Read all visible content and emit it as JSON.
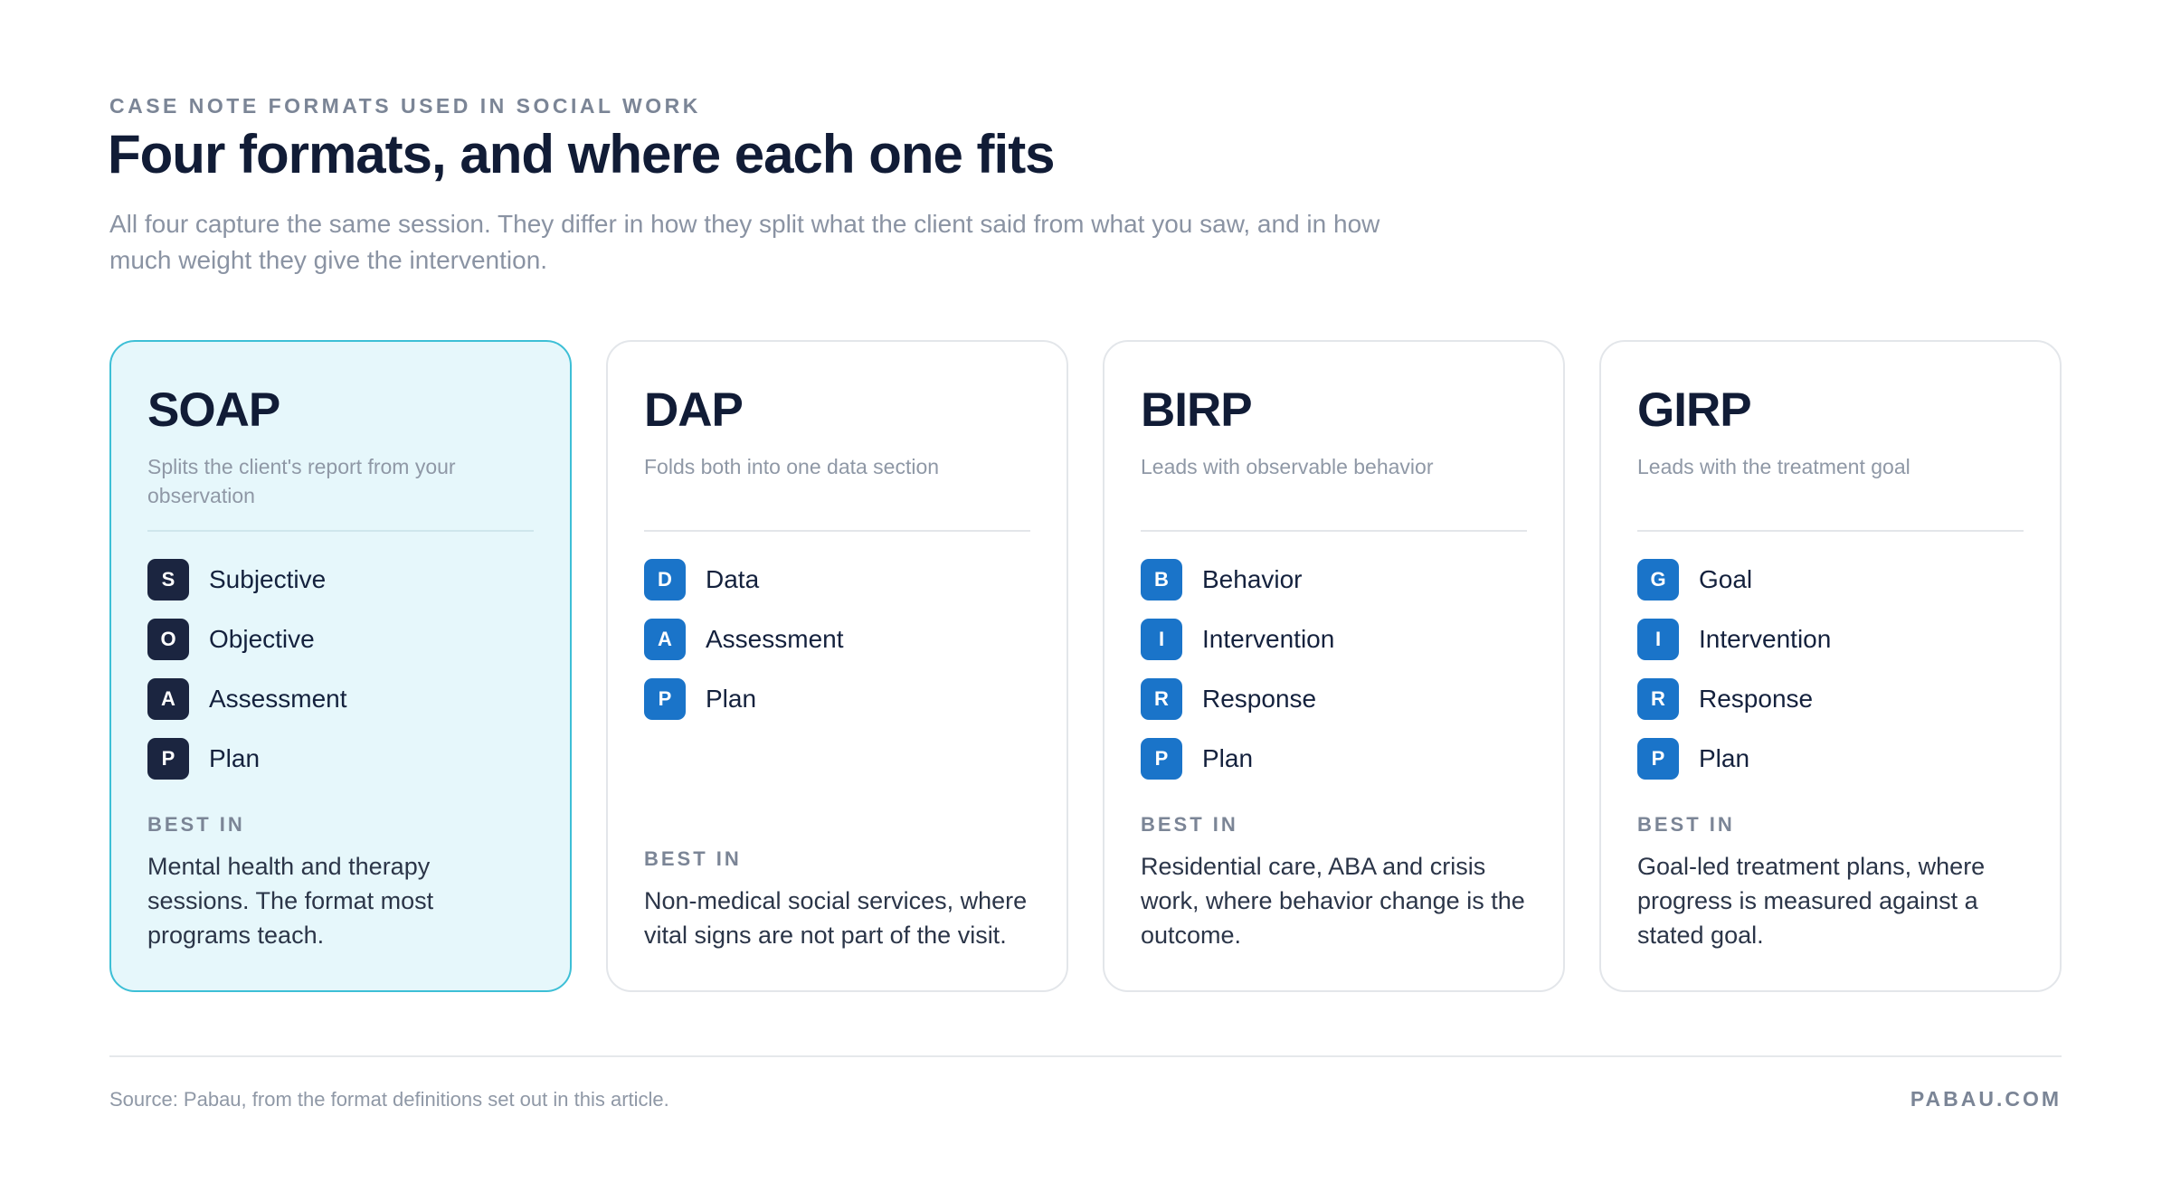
{
  "header": {
    "eyebrow": "CASE NOTE FORMATS USED IN SOCIAL WORK",
    "title": "Four formats, and where each one fits",
    "subtitle": "All four capture the same session. They differ in how they split what the client said from what you saw, and in how much weight they give the intervention."
  },
  "cards": [
    {
      "name": "SOAP",
      "highlighted": true,
      "description": "Splits the client's report from your observation",
      "items": [
        {
          "letter": "S",
          "label": "Subjective"
        },
        {
          "letter": "O",
          "label": "Objective"
        },
        {
          "letter": "A",
          "label": "Assessment"
        },
        {
          "letter": "P",
          "label": "Plan"
        }
      ],
      "best_in_label": "BEST IN",
      "best_in": "Mental health and therapy sessions. The format most programs teach."
    },
    {
      "name": "DAP",
      "highlighted": false,
      "description": "Folds both into one data section",
      "items": [
        {
          "letter": "D",
          "label": "Data"
        },
        {
          "letter": "A",
          "label": "Assessment"
        },
        {
          "letter": "P",
          "label": "Plan"
        }
      ],
      "best_in_label": "BEST IN",
      "best_in": "Non-medical social services, where vital signs are not part of the visit."
    },
    {
      "name": "BIRP",
      "highlighted": false,
      "description": "Leads with observable behavior",
      "items": [
        {
          "letter": "B",
          "label": "Behavior"
        },
        {
          "letter": "I",
          "label": "Intervention"
        },
        {
          "letter": "R",
          "label": "Response"
        },
        {
          "letter": "P",
          "label": "Plan"
        }
      ],
      "best_in_label": "BEST IN",
      "best_in": "Residential care, ABA and crisis work, where behavior change is the outcome."
    },
    {
      "name": "GIRP",
      "highlighted": false,
      "description": "Leads with the treatment goal",
      "items": [
        {
          "letter": "G",
          "label": "Goal"
        },
        {
          "letter": "I",
          "label": "Intervention"
        },
        {
          "letter": "R",
          "label": "Response"
        },
        {
          "letter": "P",
          "label": "Plan"
        }
      ],
      "best_in_label": "BEST IN",
      "best_in": "Goal-led treatment plans, where progress is measured against a stated goal."
    }
  ],
  "footer": {
    "source": "Source: Pabau, from the format definitions set out in this article.",
    "brand": "PABAU.COM"
  }
}
